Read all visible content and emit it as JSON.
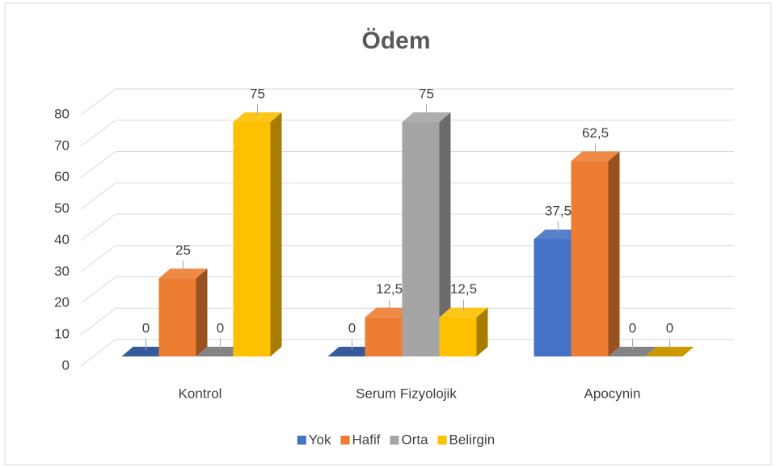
{
  "chart_data": {
    "type": "bar3d",
    "title": "Ödem",
    "categories": [
      "Kontrol",
      "Serum Fizyolojik",
      "Apocynin"
    ],
    "series": [
      {
        "name": "Yok",
        "color": "#4472c4",
        "values": [
          0,
          0,
          37.5
        ],
        "value_labels": [
          "0",
          "0",
          "37,5"
        ]
      },
      {
        "name": "Hafif",
        "color": "#ed7d31",
        "values": [
          25,
          12.5,
          62.5
        ],
        "value_labels": [
          "25",
          "12,5",
          "62,5"
        ]
      },
      {
        "name": "Orta",
        "color": "#a5a5a5",
        "values": [
          0,
          75,
          0
        ],
        "value_labels": [
          "0",
          "75",
          "0"
        ]
      },
      {
        "name": "Belirgin",
        "color": "#ffc000",
        "values": [
          75,
          12.5,
          0
        ],
        "value_labels": [
          "75",
          "12,5",
          "0"
        ]
      }
    ],
    "ylim": [
      0,
      80
    ],
    "yticks": [
      0,
      10,
      20,
      30,
      40,
      50,
      60,
      70,
      80
    ],
    "grid": true,
    "legend": "bottom"
  }
}
